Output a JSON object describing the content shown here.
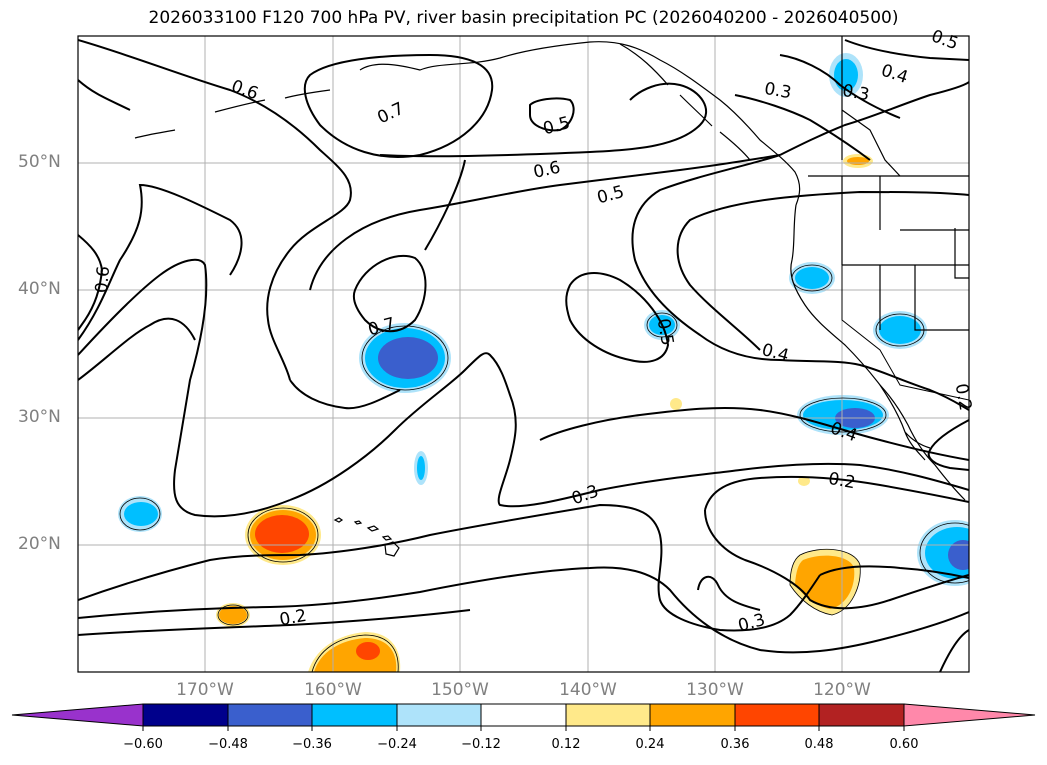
{
  "title": "2026033100 F120 700 hPa PV, river basin precipitation PC (2026040200 - 2026040500)",
  "axes": {
    "lat_labels": [
      "50°N",
      "40°N",
      "30°N",
      "20°N"
    ],
    "lon_labels": [
      "170°W",
      "160°W",
      "150°W",
      "140°W",
      "130°W",
      "120°W"
    ]
  },
  "contour_labels": [
    "0.6",
    "0.7",
    "0.5",
    "0.6",
    "0.5",
    "0.3",
    "0.4",
    "0.3",
    "0.6",
    "0.7",
    "0.5",
    "0.4",
    "0.4",
    "0.2",
    "0.3",
    "0.2",
    "0.3",
    "0.2",
    "0.5"
  ],
  "colorbar": {
    "ticks": [
      "−0.60",
      "−0.48",
      "−0.36",
      "−0.24",
      "−0.12",
      "0.12",
      "0.24",
      "0.36",
      "0.48",
      "0.60"
    ],
    "colors": [
      "#9932cc",
      "#00008b",
      "#3a5fcd",
      "#00bfff",
      "#aee3fa",
      "#ffffff",
      "#ffe98a",
      "#ffa500",
      "#ff4500",
      "#b22222",
      "#ff88aa"
    ]
  },
  "style": {
    "positive_fill_light": "#ffe98a",
    "positive_fill_mid": "#ffa500",
    "positive_fill_strong": "#ff4500",
    "negative_fill_light": "#aee3fa",
    "negative_fill_mid": "#00bfff",
    "negative_fill_strong": "#3a5fcd",
    "grid_color": "#b0b0b0"
  }
}
